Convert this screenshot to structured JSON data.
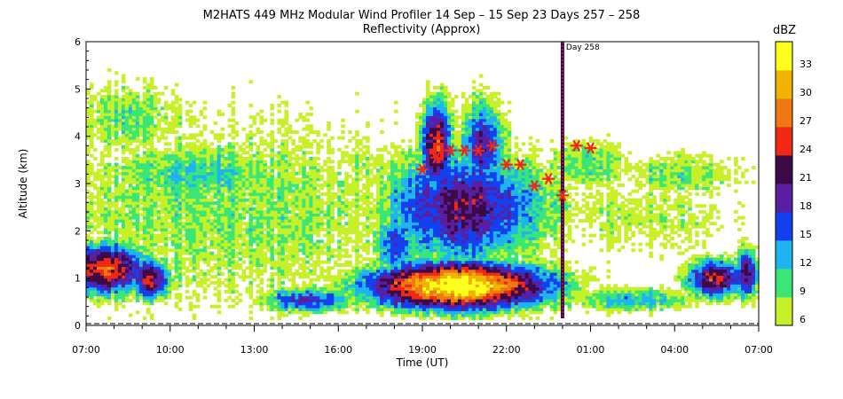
{
  "title": "M2HATS 449 MHz Modular Wind Profiler  14 Sep – 15 Sep 23 Days 257 – 258",
  "subtitle": "Reflectivity (Approx)",
  "chart_data": {
    "type": "heatmap",
    "xlabel": "Time (UT)",
    "ylabel": "Altitude (km)",
    "x_ticks": [
      "07:00",
      "10:00",
      "13:00",
      "16:00",
      "19:00",
      "22:00",
      "01:00",
      "04:00",
      "07:00"
    ],
    "x_range_hours": [
      0,
      24
    ],
    "y_ticks": [
      "0",
      "1",
      "2",
      "3",
      "4",
      "5",
      "6"
    ],
    "ylim": [
      0,
      6
    ],
    "day_marker": {
      "label": "Day 258",
      "hour": 17
    },
    "colorbar": {
      "label": "dBZ",
      "ticks": [
        "6",
        "9",
        "12",
        "15",
        "18",
        "21",
        "24",
        "27",
        "30",
        "33"
      ],
      "levels": [
        6,
        9,
        12,
        15,
        18,
        21,
        24,
        27,
        30,
        33,
        36
      ],
      "colors": [
        "#c8f028",
        "#39e676",
        "#1eb4f0",
        "#1440f0",
        "#5a1ea0",
        "#3c0a46",
        "#f02814",
        "#f07814",
        "#f0b400",
        "#ffff1e"
      ]
    },
    "bright_band_peaks": [
      {
        "hour": 12.0,
        "alt_km": 3.3
      },
      {
        "hour": 12.5,
        "alt_km": 3.55
      },
      {
        "hour": 13.0,
        "alt_km": 3.7
      },
      {
        "hour": 13.5,
        "alt_km": 3.7
      },
      {
        "hour": 14.0,
        "alt_km": 3.7
      },
      {
        "hour": 14.5,
        "alt_km": 3.8
      },
      {
        "hour": 15.0,
        "alt_km": 3.4
      },
      {
        "hour": 15.5,
        "alt_km": 3.4
      },
      {
        "hour": 16.0,
        "alt_km": 2.95
      },
      {
        "hour": 16.5,
        "alt_km": 3.1
      },
      {
        "hour": 17.0,
        "alt_km": 2.75
      },
      {
        "hour": 17.5,
        "alt_km": 3.8
      },
      {
        "hour": 18.0,
        "alt_km": 3.75
      }
    ]
  }
}
